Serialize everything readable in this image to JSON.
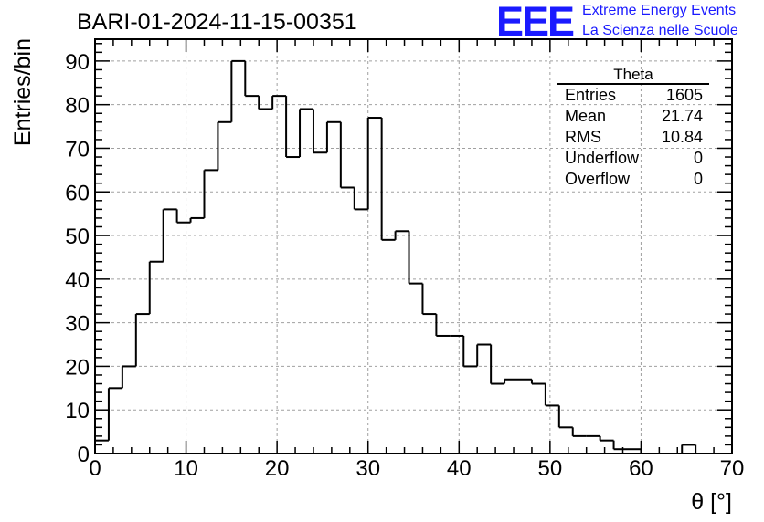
{
  "title": "BARI-01-2024-11-15-00351",
  "logo": {
    "mark": "EEE",
    "line1": "Extreme Energy Events",
    "line2": "La Scienza nelle Scuole",
    "color": "#1a1aff"
  },
  "stats": {
    "title": "Theta",
    "rows": [
      {
        "label": "Entries",
        "value": "1605"
      },
      {
        "label": "Mean",
        "value": "21.74"
      },
      {
        "label": "RMS",
        "value": "10.84"
      },
      {
        "label": "Underflow",
        "value": "0"
      },
      {
        "label": "Overflow",
        "value": "0"
      }
    ]
  },
  "chart_data": {
    "type": "bar",
    "style": "step-histogram",
    "xlabel": "θ [°]",
    "ylabel": "Entries/bin",
    "xlim": [
      0,
      70
    ],
    "ylim": [
      0,
      95
    ],
    "grid": true,
    "x_ticks": [
      0,
      10,
      20,
      30,
      40,
      50,
      60,
      70
    ],
    "y_ticks": [
      0,
      10,
      20,
      30,
      40,
      50,
      60,
      70,
      80,
      90
    ],
    "bin_edges": [
      0,
      1.5,
      3,
      4.5,
      6,
      7.5,
      9,
      10.5,
      12,
      13.5,
      15,
      16.5,
      18,
      19.5,
      21,
      22.5,
      24,
      25.5,
      27,
      28.5,
      30,
      31.5,
      33,
      34.5,
      36,
      37.5,
      39,
      40.5,
      42,
      43.5,
      45,
      46.5,
      48,
      49.5,
      51,
      52.5,
      54,
      55.5,
      57,
      58.5,
      60,
      61.5,
      63,
      64.5,
      66,
      67.5,
      69
    ],
    "values": [
      3,
      15,
      20,
      32,
      44,
      56,
      53,
      54,
      65,
      76,
      90,
      82,
      79,
      82,
      68,
      79,
      69,
      76,
      61,
      56,
      77,
      49,
      51,
      39,
      32,
      27,
      27,
      20,
      25,
      16,
      17,
      17,
      16,
      11,
      6,
      4,
      4,
      3,
      1,
      1,
      0,
      0,
      0,
      2,
      0,
      0
    ]
  }
}
